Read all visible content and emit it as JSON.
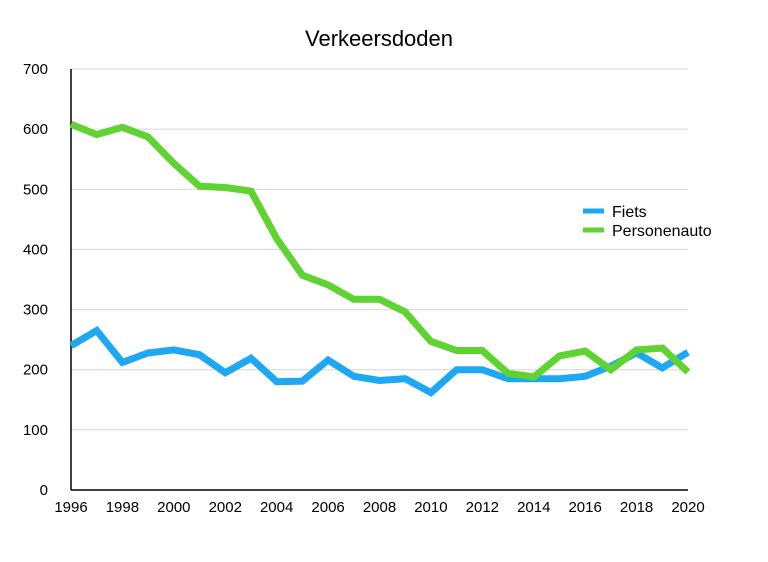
{
  "chart_data": {
    "type": "line",
    "title": "Verkeersdoden",
    "xlabel": "",
    "ylabel": "",
    "x": [
      1996,
      1997,
      1998,
      1999,
      2000,
      2001,
      2002,
      2003,
      2004,
      2005,
      2006,
      2007,
      2008,
      2009,
      2010,
      2011,
      2012,
      2013,
      2014,
      2015,
      2016,
      2017,
      2018,
      2019,
      2020
    ],
    "xticks": [
      "1996",
      "1998",
      "2000",
      "2002",
      "2004",
      "2006",
      "2008",
      "2010",
      "2012",
      "2014",
      "2016",
      "2018",
      "2020"
    ],
    "yticks": [
      "0",
      "100",
      "200",
      "300",
      "400",
      "500",
      "600",
      "700"
    ],
    "ylim": [
      0,
      700
    ],
    "xlim": [
      1996,
      2020
    ],
    "grid": true,
    "legend_position": "right",
    "series": [
      {
        "name": "Fiets",
        "color": "#1ea7f2",
        "values": [
          240,
          265,
          212,
          228,
          233,
          225,
          195,
          219,
          180,
          181,
          216,
          189,
          182,
          185,
          162,
          200,
          200,
          185,
          185,
          185,
          189,
          206,
          228,
          203,
          229
        ]
      },
      {
        "name": "Personenauto",
        "color": "#5fd332",
        "values": [
          608,
          591,
          603,
          587,
          543,
          505,
          503,
          497,
          418,
          357,
          341,
          317,
          317,
          296,
          247,
          232,
          232,
          194,
          188,
          223,
          231,
          200,
          233,
          236,
          196
        ]
      }
    ]
  }
}
